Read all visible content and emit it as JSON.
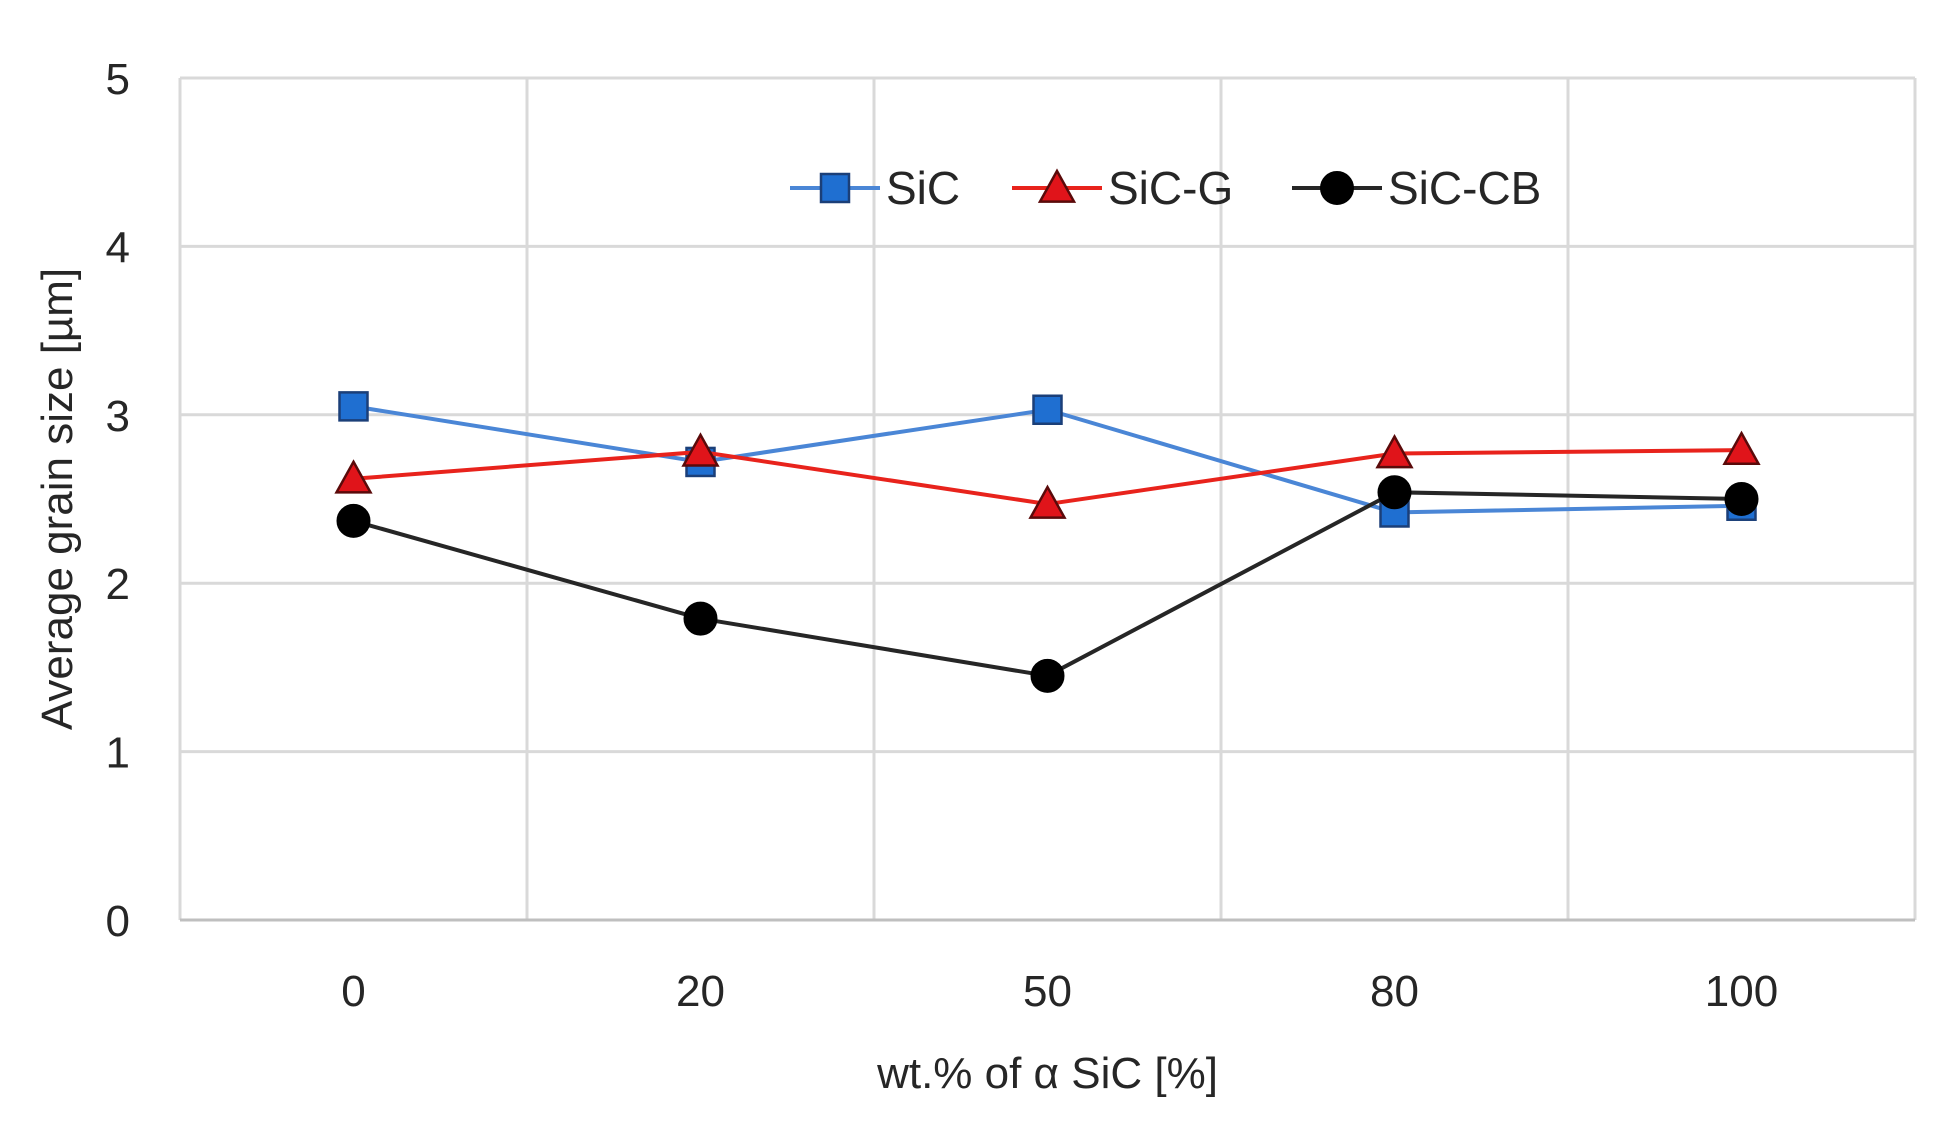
{
  "chart_data": {
    "type": "line",
    "title": "",
    "xlabel": "wt.% of α SiC [%]",
    "ylabel": "Average grain size [µm]",
    "categories": [
      "0",
      "20",
      "50",
      "80",
      "100"
    ],
    "ylim": [
      0,
      5
    ],
    "yticks": [
      "0",
      "1",
      "2",
      "3",
      "4",
      "5"
    ],
    "grid": true,
    "legend_position": "top-center",
    "series": [
      {
        "name": "SiC",
        "values": [
          3.05,
          2.72,
          3.03,
          2.42,
          2.46
        ],
        "color": "#4a86d6",
        "marker": "square",
        "marker_fill": "#1f6fd1"
      },
      {
        "name": "SiC-G",
        "values": [
          2.62,
          2.78,
          2.47,
          2.77,
          2.79
        ],
        "color": "#e8231c",
        "marker": "triangle",
        "marker_fill": "#e0141a"
      },
      {
        "name": "SiC-CB",
        "values": [
          2.37,
          1.79,
          1.45,
          2.54,
          2.5
        ],
        "color": "#262626",
        "marker": "circle",
        "marker_fill": "#000000"
      }
    ]
  }
}
